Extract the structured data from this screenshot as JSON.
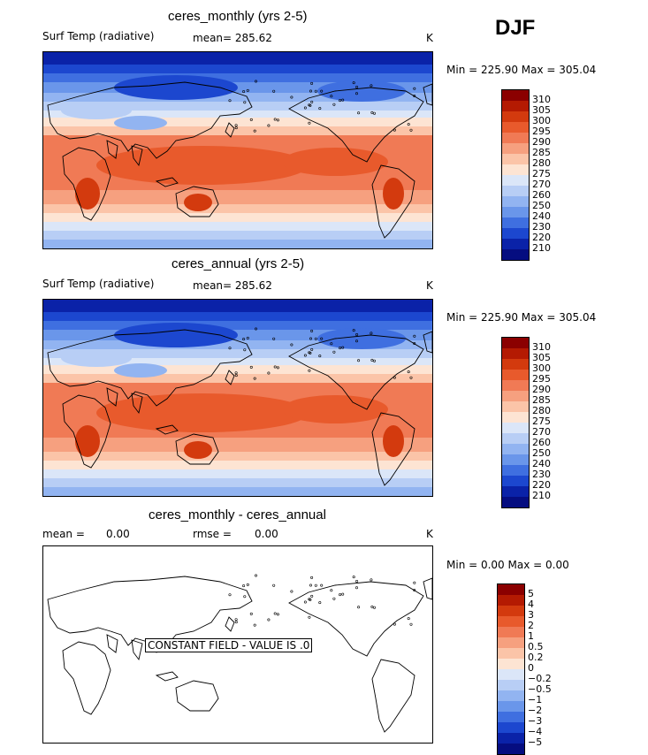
{
  "season": "DJF",
  "chart_data": [
    {
      "type": "heatmap",
      "title": "ceres_monthly (yrs 2-5)",
      "variable_label": "Surf Temp (radiative)",
      "mean_text": "mean= 285.62",
      "units": "K",
      "minmax_text": "Min = 225.90 Max = 305.04",
      "min": 225.9,
      "max": 305.04,
      "colorbar_levels": [
        "310",
        "305",
        "300",
        "295",
        "290",
        "285",
        "280",
        "275",
        "270",
        "260",
        "250",
        "240",
        "230",
        "220",
        "210"
      ],
      "colorbar_colors": [
        "#8b0000",
        "#b41a02",
        "#d33a0e",
        "#e85a2c",
        "#f07a55",
        "#f6a07f",
        "#fbc4a8",
        "#fde4d3",
        "#dbe6f8",
        "#b8cef5",
        "#92b4f1",
        "#6a96ea",
        "#3f6fe0",
        "#1c47cf",
        "#0a22a8",
        "#050d80"
      ]
    },
    {
      "type": "heatmap",
      "title": "ceres_annual (yrs 2-5)",
      "variable_label": "Surf Temp (radiative)",
      "mean_text": "mean= 285.62",
      "units": "K",
      "minmax_text": "Min = 225.90 Max = 305.04",
      "min": 225.9,
      "max": 305.04,
      "colorbar_levels": [
        "310",
        "305",
        "300",
        "295",
        "290",
        "285",
        "280",
        "275",
        "270",
        "260",
        "250",
        "240",
        "230",
        "220",
        "210"
      ],
      "colorbar_colors": [
        "#8b0000",
        "#b41a02",
        "#d33a0e",
        "#e85a2c",
        "#f07a55",
        "#f6a07f",
        "#fbc4a8",
        "#fde4d3",
        "#dbe6f8",
        "#b8cef5",
        "#92b4f1",
        "#6a96ea",
        "#3f6fe0",
        "#1c47cf",
        "#0a22a8",
        "#050d80"
      ]
    },
    {
      "type": "heatmap",
      "title": "ceres_monthly - ceres_annual",
      "mean_label": "mean =",
      "mean_value": "0.00",
      "rmse_label": "rmse =",
      "rmse_value": "0.00",
      "units": "K",
      "minmax_text": "Min =   0.00 Max =   0.00",
      "min": 0.0,
      "max": 0.0,
      "message": "CONSTANT FIELD - VALUE IS .0",
      "colorbar_levels": [
        "5",
        "4",
        "3",
        "2",
        "1",
        "0.5",
        "0.2",
        "0",
        "−0.2",
        "−0.5",
        "−1",
        "−2",
        "−3",
        "−4",
        "−5"
      ],
      "colorbar_colors": [
        "#8b0000",
        "#b41a02",
        "#d33a0e",
        "#e85a2c",
        "#f07a55",
        "#f6a07f",
        "#fbc4a8",
        "#fde4d3",
        "#dbe6f8",
        "#b8cef5",
        "#92b4f1",
        "#6a96ea",
        "#3f6fe0",
        "#1c47cf",
        "#0a22a8",
        "#050d80"
      ]
    }
  ]
}
